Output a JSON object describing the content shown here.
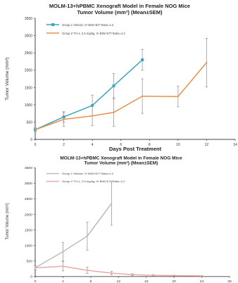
{
  "chart_data": [
    {
      "type": "line",
      "title": "MOLM-13+hPBMC Xenograft Model in Female NOG Mice",
      "subtitle": "Tumor Volume (mm³) (Mean±SEM)",
      "xlabel": "Days Post Treatment",
      "ylabel": "Tumor Volume (mm³)",
      "xlim": [
        0,
        14
      ],
      "ylim": [
        0,
        3500
      ],
      "xticks": [
        "0",
        "2",
        "4",
        "6",
        "8",
        "10",
        "12",
        "14"
      ],
      "yticks": [
        "0",
        "500",
        "1000",
        "1500",
        "2000",
        "2500",
        "3000",
        "3500"
      ],
      "legend_position": "top-left",
      "grid": false,
      "series": [
        {
          "name": "Group 1 Vehicle, IV BIW+E/T Ratio=1:2",
          "color": "#3ba3c4",
          "marker": "square",
          "x": [
            0,
            2,
            4,
            5.5,
            7.5
          ],
          "y": [
            280,
            650,
            980,
            1550,
            2300
          ],
          "err": [
            60,
            150,
            300,
            350,
            300
          ]
        },
        {
          "name": "Group 2 TH-1, 2.5 mg/kg, IV BIW+E/T Ratio=1:2",
          "color": "#e8904a",
          "marker": "none",
          "x": [
            0,
            2,
            4,
            5.5,
            7.5,
            10,
            12
          ],
          "y": [
            280,
            580,
            680,
            780,
            1250,
            1240,
            2220
          ],
          "err": [
            60,
            200,
            280,
            400,
            500,
            300,
            700
          ]
        }
      ]
    },
    {
      "type": "line",
      "title": "MOLM-13+hPBMC Xenograft Model in Female NOG Mice",
      "subtitle": "Tumor Volume (mm³) (Mean±SEM)",
      "xlabel": "",
      "ylabel": "Tumor Volume (mm³)",
      "xlim": [
        0,
        28
      ],
      "ylim": [
        0,
        3500
      ],
      "xticks": [
        "0",
        "4",
        "8",
        "12",
        "16",
        "20",
        "24",
        "28"
      ],
      "yticks": [
        "0",
        "500",
        "1000",
        "1500",
        "2000",
        "2500",
        "3000",
        "3500"
      ],
      "legend_position": "top-left",
      "grid": false,
      "series": [
        {
          "name": "Group 1 Vehicle, IV BIW+E/T Ratio=1:2",
          "color": "#b8b8b8",
          "marker": "none",
          "x": [
            0,
            4,
            7.5,
            11
          ],
          "y": [
            280,
            800,
            1300,
            2350
          ],
          "err": [
            60,
            300,
            450,
            700
          ]
        },
        {
          "name": "Group 2 TH-1, 2.5 mg/kg, IV BIW+E/T Ratio=1:2",
          "color": "#e6a4a4",
          "marker": "none",
          "x": [
            0,
            4,
            7.5,
            11,
            14,
            17,
            20,
            24
          ],
          "y": [
            280,
            330,
            200,
            110,
            60,
            40,
            30,
            20
          ],
          "err": [
            60,
            150,
            100,
            60,
            30,
            20,
            15,
            10
          ]
        }
      ]
    }
  ]
}
